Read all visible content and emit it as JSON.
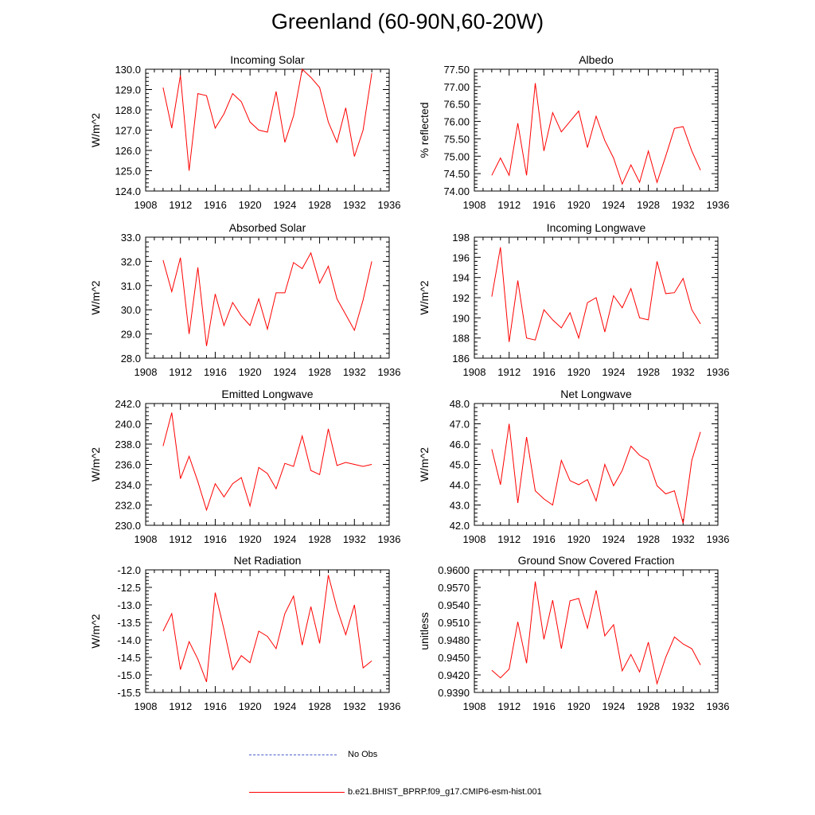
{
  "figure": {
    "title": "Greenland (60-90N,60-20W)",
    "line_color": "#ff0000",
    "obs_color": "#4a5fd0"
  },
  "legend": {
    "items": [
      {
        "label": "No Obs",
        "style": "dashed",
        "color": "#4a5fd0"
      },
      {
        "label": "b.e21.BHIST_BPRP.f09_g17.CMIP6-esm-hist.001",
        "style": "solid",
        "color": "#ff0000"
      }
    ]
  },
  "chart_data": [
    {
      "type": "line",
      "title": "Incoming Solar",
      "ylabel": "W/m^2",
      "xlim": [
        1908,
        1936
      ],
      "xticks": [
        "1908",
        "1912",
        "1916",
        "1920",
        "1924",
        "1928",
        "1932",
        "1936"
      ],
      "ylim": [
        124.0,
        130.0
      ],
      "yticks": [
        "124.0",
        "125.0",
        "126.0",
        "127.0",
        "128.0",
        "129.0",
        "130.0"
      ],
      "x": [
        1910,
        1911,
        1912,
        1913,
        1914,
        1915,
        1916,
        1917,
        1918,
        1919,
        1920,
        1921,
        1922,
        1923,
        1924,
        1925,
        1926,
        1927,
        1928,
        1929,
        1930,
        1931,
        1932,
        1933,
        1934
      ],
      "series": [
        {
          "name": "b.e21.BHIST_BPRP.f09_g17.CMIP6-esm-hist.001",
          "values": [
            129.1,
            127.1,
            129.7,
            125.0,
            128.8,
            128.7,
            127.1,
            127.8,
            128.8,
            128.4,
            127.4,
            127.0,
            126.9,
            128.9,
            126.4,
            127.7,
            130.0,
            129.6,
            129.1,
            127.4,
            126.4,
            128.1,
            125.7,
            127.0,
            129.8
          ]
        }
      ]
    },
    {
      "type": "line",
      "title": "Albedo",
      "ylabel": "% reflected",
      "xlim": [
        1908,
        1936
      ],
      "xticks": [
        "1908",
        "1912",
        "1916",
        "1920",
        "1924",
        "1928",
        "1932",
        "1936"
      ],
      "ylim": [
        74.0,
        77.5
      ],
      "yticks": [
        "74.00",
        "74.50",
        "75.00",
        "75.50",
        "76.00",
        "76.50",
        "77.00",
        "77.50"
      ],
      "x": [
        1910,
        1911,
        1912,
        1913,
        1914,
        1915,
        1916,
        1917,
        1918,
        1919,
        1920,
        1921,
        1922,
        1923,
        1924,
        1925,
        1926,
        1927,
        1928,
        1929,
        1930,
        1931,
        1932,
        1933,
        1934
      ],
      "series": [
        {
          "name": "b.e21.BHIST_BPRP.f09_g17.CMIP6-esm-hist.001",
          "values": [
            74.45,
            74.95,
            74.45,
            75.95,
            74.45,
            77.1,
            75.15,
            76.25,
            75.7,
            76.0,
            76.3,
            75.25,
            76.15,
            75.45,
            74.95,
            74.2,
            74.75,
            74.25,
            75.15,
            74.25,
            75.0,
            75.8,
            75.85,
            75.15,
            74.6
          ]
        }
      ]
    },
    {
      "type": "line",
      "title": "Absorbed Solar",
      "ylabel": "W/m^2",
      "xlim": [
        1908,
        1936
      ],
      "xticks": [
        "1908",
        "1912",
        "1916",
        "1920",
        "1924",
        "1928",
        "1932",
        "1936"
      ],
      "ylim": [
        28.0,
        33.0
      ],
      "yticks": [
        "28.0",
        "29.0",
        "30.0",
        "31.0",
        "32.0",
        "33.0"
      ],
      "x": [
        1910,
        1911,
        1912,
        1913,
        1914,
        1915,
        1916,
        1917,
        1918,
        1919,
        1920,
        1921,
        1922,
        1923,
        1924,
        1925,
        1926,
        1927,
        1928,
        1929,
        1930,
        1931,
        1932,
        1933,
        1934
      ],
      "series": [
        {
          "name": "b.e21.BHIST_BPRP.f09_g17.CMIP6-esm-hist.001",
          "values": [
            32.05,
            30.75,
            32.15,
            29.0,
            31.75,
            28.5,
            30.65,
            29.35,
            30.3,
            29.75,
            29.35,
            30.45,
            29.2,
            30.7,
            30.7,
            31.95,
            31.7,
            32.35,
            31.1,
            31.8,
            30.45,
            29.8,
            29.15,
            30.4,
            32.0
          ]
        }
      ]
    },
    {
      "type": "line",
      "title": "Incoming Longwave",
      "ylabel": "W/m^2",
      "xlim": [
        1908,
        1936
      ],
      "xticks": [
        "1908",
        "1912",
        "1916",
        "1920",
        "1924",
        "1928",
        "1932",
        "1936"
      ],
      "ylim": [
        186,
        198
      ],
      "yticks": [
        "186",
        "188",
        "190",
        "192",
        "194",
        "196",
        "198"
      ],
      "x": [
        1910,
        1911,
        1912,
        1913,
        1914,
        1915,
        1916,
        1917,
        1918,
        1919,
        1920,
        1921,
        1922,
        1923,
        1924,
        1925,
        1926,
        1927,
        1928,
        1929,
        1930,
        1931,
        1932,
        1933,
        1934
      ],
      "series": [
        {
          "name": "b.e21.BHIST_BPRP.f09_g17.CMIP6-esm-hist.001",
          "values": [
            192.1,
            197.0,
            187.6,
            193.7,
            188.0,
            187.8,
            190.8,
            189.8,
            189.0,
            190.5,
            188.0,
            191.5,
            192.0,
            188.6,
            192.2,
            191.0,
            192.9,
            190.0,
            189.8,
            195.6,
            192.4,
            192.5,
            193.9,
            190.8,
            189.4
          ]
        }
      ]
    },
    {
      "type": "line",
      "title": "Emitted Longwave",
      "ylabel": "W/m^2",
      "xlim": [
        1908,
        1936
      ],
      "xticks": [
        "1908",
        "1912",
        "1916",
        "1920",
        "1924",
        "1928",
        "1932",
        "1936"
      ],
      "ylim": [
        230.0,
        242.0
      ],
      "yticks": [
        "230.0",
        "232.0",
        "234.0",
        "236.0",
        "238.0",
        "240.0",
        "242.0"
      ],
      "x": [
        1910,
        1911,
        1912,
        1913,
        1914,
        1915,
        1916,
        1917,
        1918,
        1919,
        1920,
        1921,
        1922,
        1923,
        1924,
        1925,
        1926,
        1927,
        1928,
        1929,
        1930,
        1931,
        1932,
        1933,
        1934
      ],
      "series": [
        {
          "name": "b.e21.BHIST_BPRP.f09_g17.CMIP6-esm-hist.001",
          "values": [
            237.8,
            241.1,
            234.6,
            236.8,
            234.3,
            231.5,
            234.1,
            232.8,
            234.1,
            234.7,
            231.9,
            235.7,
            235.1,
            233.6,
            236.1,
            235.8,
            238.8,
            235.4,
            235.0,
            239.5,
            235.9,
            236.2,
            236.0,
            235.8,
            236.0
          ]
        }
      ]
    },
    {
      "type": "line",
      "title": "Net Longwave",
      "ylabel": "W/m^2",
      "xlim": [
        1908,
        1936
      ],
      "xticks": [
        "1908",
        "1912",
        "1916",
        "1920",
        "1924",
        "1928",
        "1932",
        "1936"
      ],
      "ylim": [
        42.0,
        48.0
      ],
      "yticks": [
        "42.0",
        "43.0",
        "44.0",
        "45.0",
        "46.0",
        "47.0",
        "48.0"
      ],
      "x": [
        1910,
        1911,
        1912,
        1913,
        1914,
        1915,
        1916,
        1917,
        1918,
        1919,
        1920,
        1921,
        1922,
        1923,
        1924,
        1925,
        1926,
        1927,
        1928,
        1929,
        1930,
        1931,
        1932,
        1933,
        1934
      ],
      "series": [
        {
          "name": "b.e21.BHIST_BPRP.f09_g17.CMIP6-esm-hist.001",
          "values": [
            45.75,
            44.0,
            47.0,
            43.1,
            46.35,
            43.7,
            43.3,
            43.0,
            45.2,
            44.2,
            44.0,
            44.25,
            43.2,
            45.0,
            43.95,
            44.7,
            45.9,
            45.45,
            45.2,
            43.95,
            43.55,
            43.7,
            42.1,
            45.2,
            46.6
          ]
        }
      ]
    },
    {
      "type": "line",
      "title": "Net Radiation",
      "ylabel": "W/m^2",
      "xlim": [
        1908,
        1936
      ],
      "xticks": [
        "1908",
        "1912",
        "1916",
        "1920",
        "1924",
        "1928",
        "1932",
        "1936"
      ],
      "ylim": [
        -15.5,
        -12.0
      ],
      "yticks": [
        "-15.5",
        "-15.0",
        "-14.5",
        "-14.0",
        "-13.5",
        "-13.0",
        "-12.5",
        "-12.0"
      ],
      "x": [
        1910,
        1911,
        1912,
        1913,
        1914,
        1915,
        1916,
        1917,
        1918,
        1919,
        1920,
        1921,
        1922,
        1923,
        1924,
        1925,
        1926,
        1927,
        1928,
        1929,
        1930,
        1931,
        1932,
        1933,
        1934
      ],
      "series": [
        {
          "name": "b.e21.BHIST_BPRP.f09_g17.CMIP6-esm-hist.001",
          "values": [
            -13.75,
            -13.25,
            -14.85,
            -14.05,
            -14.55,
            -15.2,
            -12.65,
            -13.7,
            -14.85,
            -14.45,
            -14.65,
            -13.75,
            -13.9,
            -14.25,
            -13.25,
            -12.75,
            -14.15,
            -13.05,
            -14.1,
            -12.15,
            -13.1,
            -13.85,
            -13.0,
            -14.8,
            -14.6
          ]
        }
      ]
    },
    {
      "type": "line",
      "title": "Ground Snow Covered Fraction",
      "ylabel": "unitless",
      "xlim": [
        1908,
        1936
      ],
      "xticks": [
        "1908",
        "1912",
        "1916",
        "1920",
        "1924",
        "1928",
        "1932",
        "1936"
      ],
      "ylim": [
        0.939,
        0.96
      ],
      "yticks": [
        "0.9390",
        "0.9420",
        "0.9450",
        "0.9480",
        "0.9510",
        "0.9540",
        "0.9570",
        "0.9600"
      ],
      "x": [
        1910,
        1911,
        1912,
        1913,
        1914,
        1915,
        1916,
        1917,
        1918,
        1919,
        1920,
        1921,
        1922,
        1923,
        1924,
        1925,
        1926,
        1927,
        1928,
        1929,
        1930,
        1931,
        1932,
        1933,
        1934
      ],
      "series": [
        {
          "name": "b.e21.BHIST_BPRP.f09_g17.CMIP6-esm-hist.001",
          "values": [
            0.9428,
            0.9415,
            0.943,
            0.9511,
            0.944,
            0.958,
            0.9481,
            0.9548,
            0.9465,
            0.9547,
            0.9551,
            0.95,
            0.9565,
            0.9487,
            0.9506,
            0.9427,
            0.9455,
            0.9425,
            0.9476,
            0.9405,
            0.945,
            0.9485,
            0.9473,
            0.9465,
            0.9437
          ]
        }
      ]
    }
  ]
}
